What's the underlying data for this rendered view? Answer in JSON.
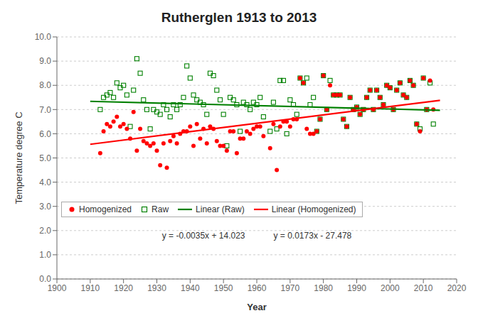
{
  "chart_data": {
    "type": "scatter",
    "title": "Rutherglen 1913 to 2013",
    "x_label": "Year",
    "y_label": "Temperature degree C",
    "xlim": [
      1900,
      2020
    ],
    "ylim": [
      0.0,
      10.0
    ],
    "xticks": [
      1900,
      1910,
      1920,
      1930,
      1940,
      1950,
      1960,
      1970,
      1980,
      1990,
      2000,
      2010,
      2020
    ],
    "yticks": [
      {
        "value": 0.0,
        "label": "0.0"
      },
      {
        "value": 1.0,
        "label": "1.0"
      },
      {
        "value": 2.0,
        "label": "2.0"
      },
      {
        "value": 3.0,
        "label": "3.0"
      },
      {
        "value": 4.0,
        "label": "4.0"
      },
      {
        "value": 5.0,
        "label": "5.0"
      },
      {
        "value": 6.0,
        "label": "6.0"
      },
      {
        "value": 7.0,
        "label": "7.0"
      },
      {
        "value": 8.0,
        "label": "8.0"
      },
      {
        "value": 9.0,
        "label": "9.0"
      },
      {
        "value": 10.0,
        "label": "10.0"
      }
    ],
    "grid": "y",
    "legend": "lower left",
    "annotations": [
      "y = -0.0035x + 14.023",
      "y = 0.0173x - 27.478"
    ],
    "series": [
      {
        "name": "Homogenized",
        "type": "scatter",
        "color": "#ff0000",
        "marker": "circle",
        "x": [
          1913,
          1914,
          1915,
          1916,
          1917,
          1918,
          1919,
          1920,
          1921,
          1922,
          1923,
          1924,
          1925,
          1926,
          1927,
          1928,
          1929,
          1930,
          1931,
          1932,
          1933,
          1934,
          1935,
          1936,
          1937,
          1938,
          1939,
          1940,
          1941,
          1942,
          1943,
          1944,
          1945,
          1946,
          1947,
          1948,
          1949,
          1950,
          1951,
          1952,
          1953,
          1954,
          1955,
          1956,
          1957,
          1958,
          1959,
          1960,
          1961,
          1962,
          1964,
          1965,
          1966,
          1967,
          1968,
          1969,
          1970,
          1971,
          1972,
          1973,
          1974,
          1975,
          1976,
          1977,
          1978,
          1979,
          1980,
          1981,
          1982,
          1983,
          1984,
          1985,
          1986,
          1987,
          1988,
          1989,
          1990,
          1991,
          1992,
          1993,
          1994,
          1995,
          1996,
          1997,
          1998,
          1999,
          2000,
          2001,
          2002,
          2003,
          2004,
          2005,
          2006,
          2007,
          2008,
          2009,
          2010,
          2011,
          2012,
          2013
        ],
        "values": [
          5.2,
          6.1,
          6.4,
          6.3,
          6.5,
          6.7,
          6.3,
          6.4,
          6.2,
          5.8,
          6.9,
          5.3,
          6.2,
          5.7,
          5.6,
          5.5,
          5.6,
          5.3,
          4.7,
          5.6,
          4.6,
          5.7,
          5.9,
          5.6,
          6.0,
          6.1,
          6.1,
          6.3,
          5.5,
          6.4,
          5.8,
          6.2,
          5.6,
          6.3,
          6.2,
          5.7,
          5.5,
          5.5,
          5.3,
          6.1,
          6.1,
          5.2,
          5.8,
          5.8,
          6.1,
          6.0,
          6.2,
          6.3,
          6.3,
          5.9,
          5.4,
          6.4,
          4.5,
          6.3,
          6.5,
          6.5,
          6.3,
          6.6,
          6.6,
          8.3,
          8.1,
          6.2,
          6.0,
          6.0,
          6.1,
          6.6,
          8.4,
          7.0,
          8.0,
          7.6,
          7.6,
          7.6,
          6.6,
          6.3,
          7.5,
          7.0,
          7.1,
          6.8,
          7.0,
          7.5,
          7.8,
          7.0,
          7.8,
          7.5,
          7.2,
          8.0,
          7.9,
          7.0,
          7.8,
          8.1,
          7.6,
          7.5,
          8.2,
          8.0,
          6.4,
          6.1,
          8.3,
          7.0,
          8.2,
          7.0
        ]
      },
      {
        "name": "Raw",
        "type": "scatter",
        "color": "#008000",
        "marker": "open_square",
        "x": [
          1913,
          1914,
          1915,
          1916,
          1917,
          1918,
          1919,
          1920,
          1921,
          1922,
          1923,
          1924,
          1925,
          1926,
          1927,
          1928,
          1929,
          1930,
          1931,
          1932,
          1933,
          1934,
          1935,
          1936,
          1937,
          1938,
          1939,
          1940,
          1941,
          1942,
          1943,
          1944,
          1945,
          1946,
          1947,
          1948,
          1949,
          1950,
          1951,
          1952,
          1953,
          1954,
          1955,
          1956,
          1957,
          1958,
          1959,
          1960,
          1961,
          1962,
          1964,
          1965,
          1966,
          1967,
          1968,
          1969,
          1970,
          1971,
          1972,
          1973,
          1974,
          1975,
          1976,
          1977,
          1978,
          1979,
          1980,
          1981,
          1982,
          1983,
          1984,
          1985,
          1986,
          1987,
          1988,
          1989,
          1990,
          1991,
          1992,
          1993,
          1994,
          1995,
          1996,
          1997,
          1998,
          1999,
          2000,
          2001,
          2002,
          2003,
          2004,
          2005,
          2006,
          2007,
          2008,
          2009,
          2010,
          2011,
          2012,
          2013
        ],
        "values": [
          7.0,
          7.5,
          7.6,
          7.7,
          7.5,
          8.1,
          7.9,
          8.0,
          7.6,
          6.3,
          7.8,
          9.1,
          8.5,
          7.4,
          7.0,
          6.2,
          7.0,
          6.9,
          6.8,
          7.2,
          7.0,
          6.7,
          7.2,
          7.0,
          7.2,
          7.5,
          8.8,
          8.3,
          7.6,
          7.4,
          7.3,
          7.2,
          6.8,
          8.5,
          8.4,
          7.8,
          7.4,
          6.8,
          5.5,
          7.5,
          7.4,
          7.2,
          6.1,
          7.3,
          7.2,
          7.0,
          7.3,
          7.2,
          7.5,
          6.7,
          6.1,
          7.3,
          6.2,
          8.2,
          8.2,
          6.0,
          7.4,
          7.2,
          6.8,
          8.3,
          8.1,
          8.3,
          7.2,
          7.5,
          6.1,
          6.6,
          8.4,
          7.0,
          8.2,
          7.6,
          7.6,
          7.6,
          6.6,
          6.3,
          7.5,
          7.0,
          7.1,
          6.8,
          7.0,
          7.5,
          7.8,
          7.0,
          7.8,
          7.5,
          7.2,
          8.0,
          7.9,
          7.0,
          7.8,
          8.1,
          7.6,
          7.5,
          8.2,
          8.0,
          6.4,
          6.2,
          8.3,
          7.0,
          8.1,
          6.4
        ]
      },
      {
        "name": "Linear (Raw)",
        "type": "line",
        "color": "#008000",
        "line_style": "solid",
        "x": [
          1910,
          2015
        ],
        "values": [
          7.338,
          6.9705
        ]
      },
      {
        "name": "Linear (Homogenized)",
        "type": "line",
        "color": "#ff0000",
        "line_style": "solid",
        "x": [
          1910,
          2015
        ],
        "values": [
          5.565,
          7.3815
        ]
      }
    ]
  }
}
